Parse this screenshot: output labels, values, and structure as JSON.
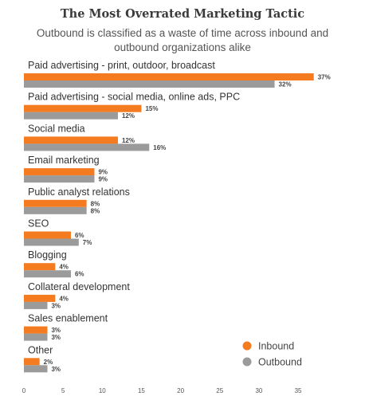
{
  "chart_data": {
    "type": "bar",
    "orientation": "horizontal",
    "title": "The Most Overrated Marketing Tactic",
    "subtitle": "Outbound is classified as a waste of time across inbound and outbound organizations alike",
    "categories": [
      "Paid advertising - print, outdoor, broadcast",
      "Paid advertising - social media, online ads, PPC",
      "Social media",
      "Email marketing",
      "Public analyst relations",
      "SEO",
      "Blogging",
      "Collateral development",
      "Sales enablement",
      "Other"
    ],
    "series": [
      {
        "name": "Inbound",
        "color": "#f47b20",
        "values": [
          37,
          15,
          12,
          9,
          8,
          6,
          4,
          4,
          3,
          2
        ]
      },
      {
        "name": "Outbound",
        "color": "#9b9b9b",
        "values": [
          32,
          12,
          16,
          9,
          8,
          7,
          6,
          3,
          3,
          3
        ]
      }
    ],
    "value_suffix": "%",
    "xlim": [
      0,
      37
    ],
    "xticks": [
      0,
      5,
      10,
      15,
      20,
      25,
      30,
      35
    ],
    "grid": false,
    "legend_position": "bottom-right"
  }
}
